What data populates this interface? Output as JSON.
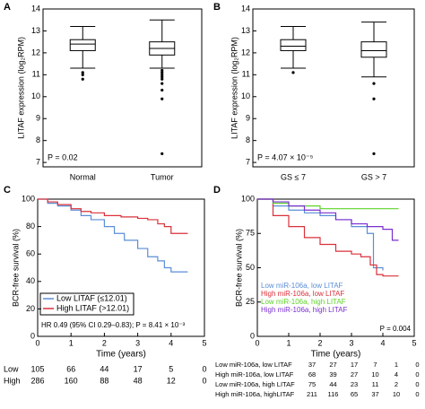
{
  "chart_data": [
    {
      "type": "box",
      "panel": "A",
      "ylabel": "LITAF expression (log₂RPM)",
      "categories": [
        "Normal",
        "Tumor"
      ],
      "boxes": [
        {
          "low": 11.3,
          "q1": 12.1,
          "median": 12.4,
          "q3": 12.6,
          "high": 13.2,
          "outliers": [
            11.1,
            11.0,
            10.8
          ]
        },
        {
          "low": 11.3,
          "q1": 11.9,
          "median": 12.2,
          "q3": 12.5,
          "high": 13.5,
          "outliers": [
            11.2,
            11.1,
            11.0,
            10.9,
            10.8,
            10.6,
            10.3,
            9.9,
            7.4
          ]
        }
      ],
      "ylim": [
        6.8,
        14
      ],
      "yticks": [
        7,
        8,
        9,
        10,
        11,
        12,
        13,
        14
      ],
      "annotation": "P = 0.02"
    },
    {
      "type": "box",
      "panel": "B",
      "ylabel": "LITAF expression (log₂RPM)",
      "categories": [
        "GS ≤ 7",
        "GS > 7"
      ],
      "boxes": [
        {
          "low": 11.3,
          "q1": 12.1,
          "median": 12.3,
          "q3": 12.6,
          "high": 13.2,
          "outliers": [
            11.1
          ]
        },
        {
          "low": 10.9,
          "q1": 11.8,
          "median": 12.1,
          "q3": 12.5,
          "high": 13.4,
          "outliers": [
            10.6,
            9.9,
            7.4
          ]
        }
      ],
      "ylim": [
        6.8,
        14
      ],
      "yticks": [
        7,
        8,
        9,
        10,
        11,
        12,
        13,
        14
      ],
      "annotation": "P = 4.07 × 10⁻⁵"
    },
    {
      "type": "survival",
      "panel": "C",
      "xlabel": "Time (years)",
      "ylabel": "BCR-free survival (%)",
      "xlim": [
        0,
        5
      ],
      "xticks": [
        0,
        1,
        2,
        3,
        4,
        5
      ],
      "ylim": [
        0,
        100
      ],
      "yticks": [
        0,
        20,
        40,
        60,
        80,
        100
      ],
      "series": [
        {
          "name": "Low LITAF (≤12.01)",
          "color": "#5b8ed6",
          "x": [
            0,
            0.3,
            0.6,
            1,
            1.3,
            1.6,
            2,
            2.3,
            2.6,
            3,
            3.3,
            3.6,
            3.8,
            4,
            4.5
          ],
          "values": [
            100,
            97,
            95,
            92,
            88,
            85,
            80,
            75,
            70,
            64,
            58,
            55,
            50,
            47,
            47
          ]
        },
        {
          "name": "High LITAF (>12.01)",
          "color": "#d9303a",
          "x": [
            0,
            0.3,
            0.6,
            1,
            1.3,
            1.6,
            2,
            2.5,
            3,
            3.3,
            3.6,
            3.8,
            4,
            4.5
          ],
          "values": [
            100,
            98,
            96,
            93,
            91,
            90,
            88,
            87,
            86,
            85,
            82,
            80,
            75,
            75
          ]
        }
      ],
      "annotation": "HR 0.49 (95% CI 0.29–0.83); P = 8.41 × 10⁻³",
      "risk_table": [
        {
          "label": "Low",
          "counts": [
            105,
            66,
            44,
            17,
            5,
            0
          ]
        },
        {
          "label": "High",
          "counts": [
            286,
            160,
            88,
            48,
            12,
            0
          ]
        }
      ]
    },
    {
      "type": "survival",
      "panel": "D",
      "xlabel": "Time (years)",
      "ylabel": "BCR-free survival (%)",
      "xlim": [
        0,
        5
      ],
      "xticks": [
        0,
        1,
        2,
        3,
        4,
        5
      ],
      "ylim": [
        0,
        100
      ],
      "yticks": [
        0,
        25,
        50,
        75,
        100
      ],
      "series": [
        {
          "name": "Low miR-106a, low LITAF",
          "color": "#5b8ed6",
          "x": [
            0,
            0.5,
            1,
            1.5,
            2,
            2.5,
            3,
            3.5,
            3.7,
            3.8,
            4
          ],
          "values": [
            100,
            95,
            92,
            90,
            88,
            85,
            80,
            75,
            50,
            50,
            48
          ]
        },
        {
          "name": "High miR-106a, low LITAF",
          "color": "#d9303a",
          "x": [
            0,
            0.5,
            1,
            1.5,
            2,
            2.5,
            3,
            3.3,
            3.6,
            3.8,
            4,
            4.5
          ],
          "values": [
            100,
            88,
            80,
            72,
            67,
            62,
            60,
            58,
            52,
            45,
            44,
            44
          ]
        },
        {
          "name": "Low miR-106a, high LITAF",
          "color": "#5fd42a",
          "x": [
            0,
            0.5,
            1,
            2,
            3,
            4,
            4.5
          ],
          "values": [
            100,
            97,
            95,
            93,
            93,
            93,
            93
          ]
        },
        {
          "name": "High miR-106a, high LITAF",
          "color": "#7a2fd0",
          "x": [
            0,
            0.5,
            1,
            1.5,
            2,
            2.5,
            3,
            3.5,
            4,
            4.3,
            4.5
          ],
          "values": [
            100,
            98,
            95,
            92,
            90,
            85,
            82,
            80,
            78,
            70,
            70
          ]
        }
      ],
      "annotation": "P = 0.004",
      "risk_table": [
        {
          "label": "Low miR-106a, low LITAF",
          "counts": [
            37,
            27,
            17,
            7,
            1,
            0
          ]
        },
        {
          "label": "High miR-106a, low LITAF",
          "counts": [
            68,
            39,
            27,
            10,
            4,
            0
          ]
        },
        {
          "label": "Low miR-106a, high LITAF",
          "counts": [
            75,
            44,
            23,
            11,
            2,
            0
          ]
        },
        {
          "label": "High miR-106a, highLITAF",
          "counts": [
            211,
            116,
            65,
            37,
            10,
            0
          ]
        }
      ]
    }
  ]
}
